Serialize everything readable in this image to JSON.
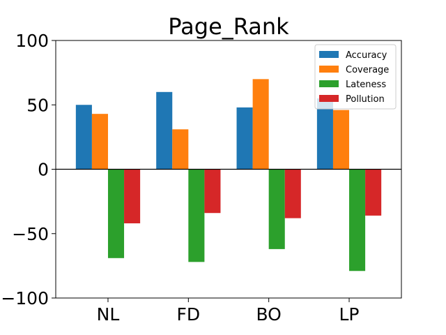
{
  "chart_data": {
    "type": "bar",
    "title": "Page_Rank",
    "xlabel": "",
    "ylabel": "",
    "categories": [
      "NL",
      "FD",
      "BO",
      "LP"
    ],
    "ylim": [
      -100,
      100
    ],
    "yticks": [
      -100,
      -50,
      0,
      50,
      100
    ],
    "ytick_labels": [
      "−100",
      "−50",
      "0",
      "50",
      "100"
    ],
    "legend_position": "top-right",
    "grid": false,
    "series": [
      {
        "name": "Accuracy",
        "color": "#1f77b4",
        "values": [
          50,
          60,
          48,
          55
        ]
      },
      {
        "name": "Coverage",
        "color": "#ff7f0e",
        "values": [
          43,
          31,
          70,
          46
        ]
      },
      {
        "name": "Lateness",
        "color": "#2ca02c",
        "values": [
          -69,
          -72,
          -62,
          -79
        ]
      },
      {
        "name": "Pollution",
        "color": "#d62728",
        "values": [
          -42,
          -34,
          -38,
          -36
        ]
      }
    ]
  }
}
